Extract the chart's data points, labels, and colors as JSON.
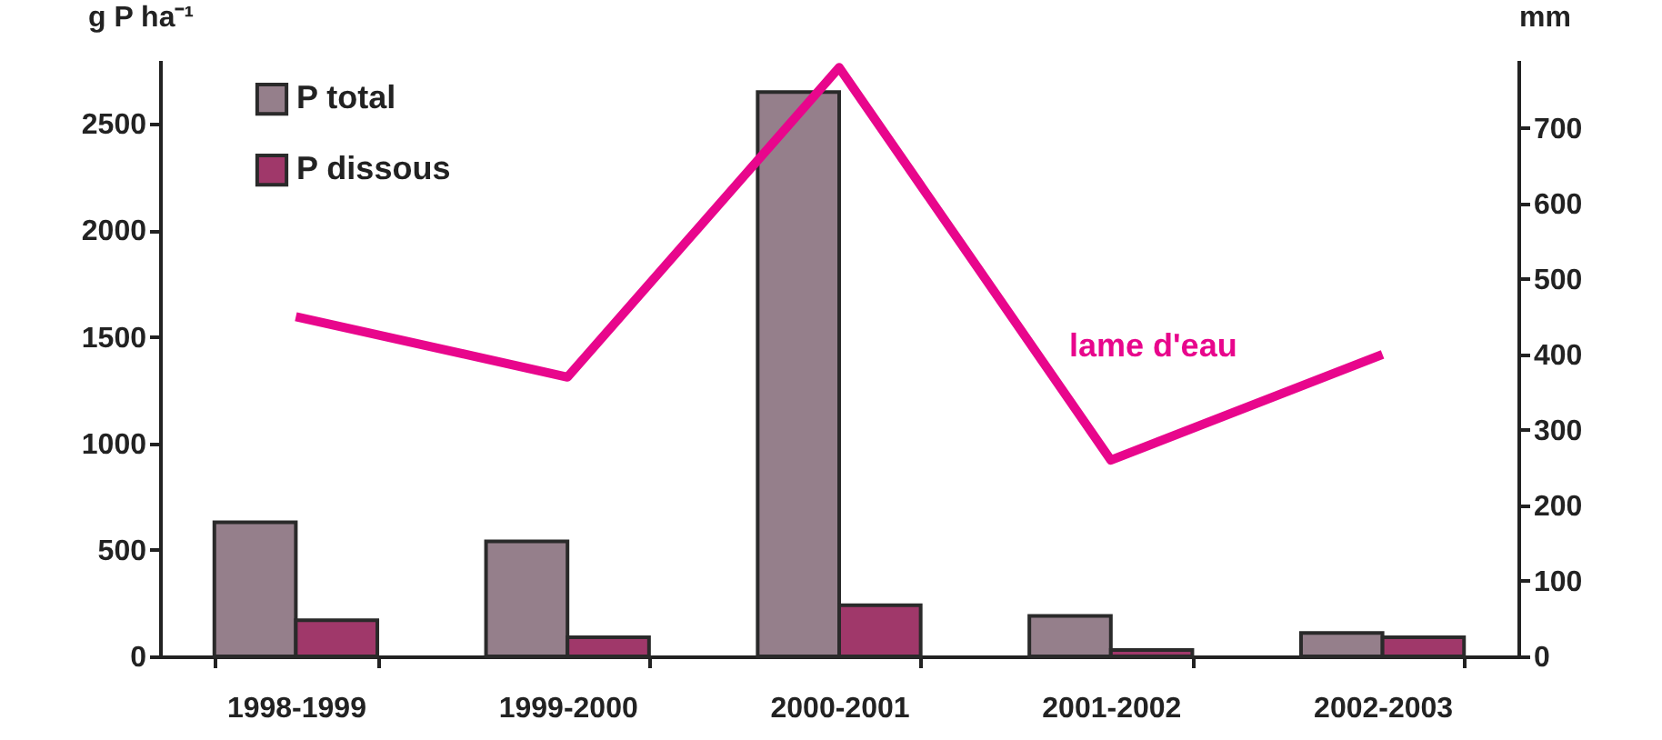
{
  "chart_data": {
    "type": "bar",
    "ylabel": "g P ha⁻¹",
    "y2label": "mm",
    "categories": [
      "1998-1999",
      "1999-2000",
      "2000-2001",
      "2001-2002",
      "2002-2003"
    ],
    "series": [
      {
        "name": "P total",
        "color": "#957f8b",
        "values": [
          630,
          540,
          2650,
          190,
          110
        ]
      },
      {
        "name": "P dissous",
        "color": "#a0386a",
        "values": [
          170,
          90,
          240,
          30,
          90
        ]
      },
      {
        "name": "lame d'eau",
        "type": "line",
        "axis": "y2",
        "color": "#e8068c",
        "values": [
          450,
          370,
          780,
          260,
          400
        ]
      }
    ],
    "ylim": [
      0,
      2800
    ],
    "yticks": [
      0,
      500,
      1000,
      1500,
      2000,
      2500
    ],
    "y2lim": [
      0,
      790
    ],
    "y2ticks": [
      0,
      100,
      200,
      300,
      400,
      500,
      600,
      700
    ],
    "grid": false,
    "legend": "top left"
  }
}
